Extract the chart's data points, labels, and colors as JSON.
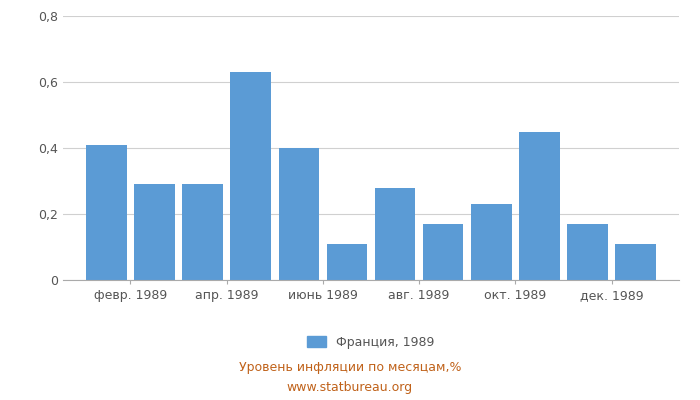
{
  "x_tick_labels": [
    "февр. 1989",
    "апр. 1989",
    "июнь 1989",
    "авг. 1989",
    "окт. 1989",
    "дек. 1989"
  ],
  "values": [
    0.41,
    0.29,
    0.29,
    0.63,
    0.4,
    0.11,
    0.28,
    0.17,
    0.23,
    0.45,
    0.17,
    0.11
  ],
  "bar_color": "#5b9bd5",
  "ylim": [
    0,
    0.8
  ],
  "yticks": [
    0,
    0.2,
    0.4,
    0.6,
    0.8
  ],
  "ytick_labels": [
    "0",
    "0,2",
    "0,4",
    "0,6",
    "0,8"
  ],
  "legend_label": "Франция, 1989",
  "footer_line1": "Уровень инфляции по месяцам,%",
  "footer_line2": "www.statbureau.org",
  "footer_color": "#c0621a",
  "background_color": "#ffffff",
  "grid_color": "#d0d0d0",
  "tick_label_color": "#555555"
}
